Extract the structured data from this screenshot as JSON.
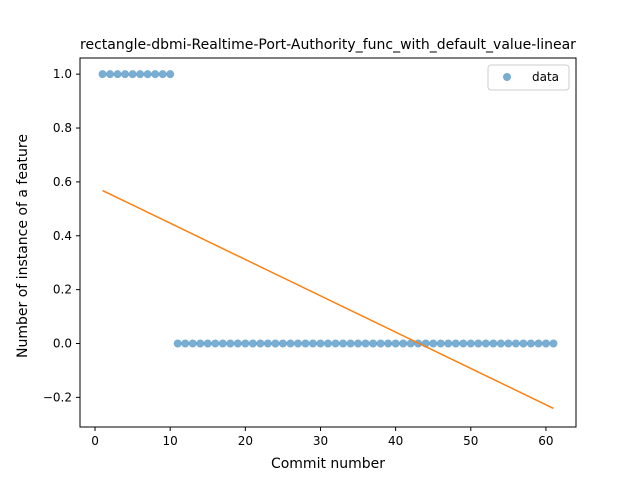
{
  "chart_data": {
    "type": "scatter",
    "title": "rectangle-dbmi-Realtime-Port-Authority_func_with_default_value-linear",
    "xlabel": "Commit number",
    "ylabel": "Number of instance of a feature",
    "xlim": [
      -2.0,
      64.0
    ],
    "ylim": [
      -0.31,
      1.06
    ],
    "xticks": [
      0,
      10,
      20,
      30,
      40,
      50,
      60
    ],
    "yticks": [
      -0.2,
      0.0,
      0.2,
      0.4,
      0.6,
      0.8,
      1.0
    ],
    "xtick_labels": [
      "0",
      "10",
      "20",
      "30",
      "40",
      "50",
      "60"
    ],
    "ytick_labels": [
      "−0.2",
      "0.0",
      "0.2",
      "0.4",
      "0.6",
      "0.8",
      "1.0"
    ],
    "legend": {
      "placement": "top-right",
      "entries": [
        "data"
      ]
    },
    "series": [
      {
        "name": "data",
        "kind": "scatter",
        "color": "#1f77b4",
        "x": [
          1,
          2,
          3,
          4,
          5,
          6,
          7,
          8,
          9,
          10,
          11,
          12,
          13,
          14,
          15,
          16,
          17,
          18,
          19,
          20,
          21,
          22,
          23,
          24,
          25,
          26,
          27,
          28,
          29,
          30,
          31,
          32,
          33,
          34,
          35,
          36,
          37,
          38,
          39,
          40,
          41,
          42,
          43,
          44,
          45,
          46,
          47,
          48,
          49,
          50,
          51,
          52,
          53,
          54,
          55,
          56,
          57,
          58,
          59,
          60,
          61
        ],
        "y": [
          1,
          1,
          1,
          1,
          1,
          1,
          1,
          1,
          1,
          1,
          0,
          0,
          0,
          0,
          0,
          0,
          0,
          0,
          0,
          0,
          0,
          0,
          0,
          0,
          0,
          0,
          0,
          0,
          0,
          0,
          0,
          0,
          0,
          0,
          0,
          0,
          0,
          0,
          0,
          0,
          0,
          0,
          0,
          0,
          0,
          0,
          0,
          0,
          0,
          0,
          0,
          0,
          0,
          0,
          0,
          0,
          0,
          0,
          0,
          0,
          0
        ]
      },
      {
        "kind": "line",
        "color": "#ff7f0e",
        "x": [
          1,
          61
        ],
        "y": [
          0.568,
          -0.241
        ]
      }
    ]
  }
}
